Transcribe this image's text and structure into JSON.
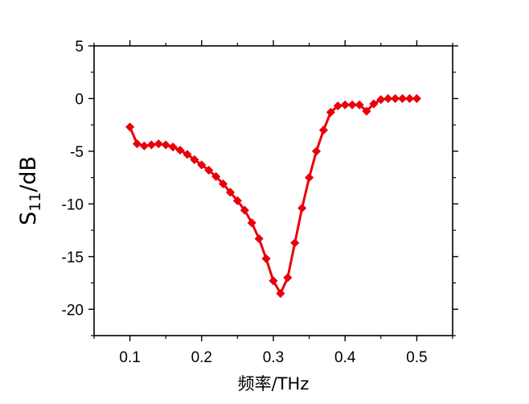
{
  "chart_data": {
    "type": "line",
    "title": "",
    "xlabel": "频率/THz",
    "ylabel": {
      "base": "S",
      "sub": "11",
      "rest": "/dB"
    },
    "xlim": [
      0.05,
      0.55
    ],
    "ylim": [
      -22.5,
      5
    ],
    "x_ticks": [
      0.1,
      0.2,
      0.3,
      0.4,
      0.5
    ],
    "x_tick_labels": [
      "0.1",
      "0.2",
      "0.3",
      "0.4",
      "0.5"
    ],
    "y_ticks": [
      5,
      0,
      -5,
      -10,
      -15,
      -20
    ],
    "y_tick_labels": [
      "5",
      "0",
      "-5",
      "-10",
      "-15",
      "-20"
    ],
    "grid": false,
    "legend": "none",
    "series": [
      {
        "color": "#e8000b",
        "marker": "diamond",
        "x": [
          0.1,
          0.11,
          0.12,
          0.13,
          0.14,
          0.15,
          0.16,
          0.17,
          0.18,
          0.19,
          0.2,
          0.21,
          0.22,
          0.23,
          0.24,
          0.25,
          0.26,
          0.27,
          0.28,
          0.29,
          0.3,
          0.31,
          0.32,
          0.33,
          0.34,
          0.35,
          0.36,
          0.37,
          0.38,
          0.39,
          0.4,
          0.41,
          0.42,
          0.43,
          0.44,
          0.45,
          0.46,
          0.47,
          0.48,
          0.49,
          0.5
        ],
        "y": [
          -2.7,
          -4.3,
          -4.5,
          -4.4,
          -4.3,
          -4.4,
          -4.6,
          -4.9,
          -5.3,
          -5.8,
          -6.3,
          -6.8,
          -7.4,
          -8.1,
          -8.9,
          -9.7,
          -10.6,
          -11.8,
          -13.3,
          -15.2,
          -17.3,
          -18.5,
          -17.0,
          -13.7,
          -10.4,
          -7.5,
          -5.0,
          -3.0,
          -1.3,
          -0.7,
          -0.6,
          -0.6,
          -0.6,
          -1.2,
          -0.5,
          -0.1,
          0.0,
          0.0,
          0.0,
          0.0,
          0.0
        ]
      }
    ]
  }
}
